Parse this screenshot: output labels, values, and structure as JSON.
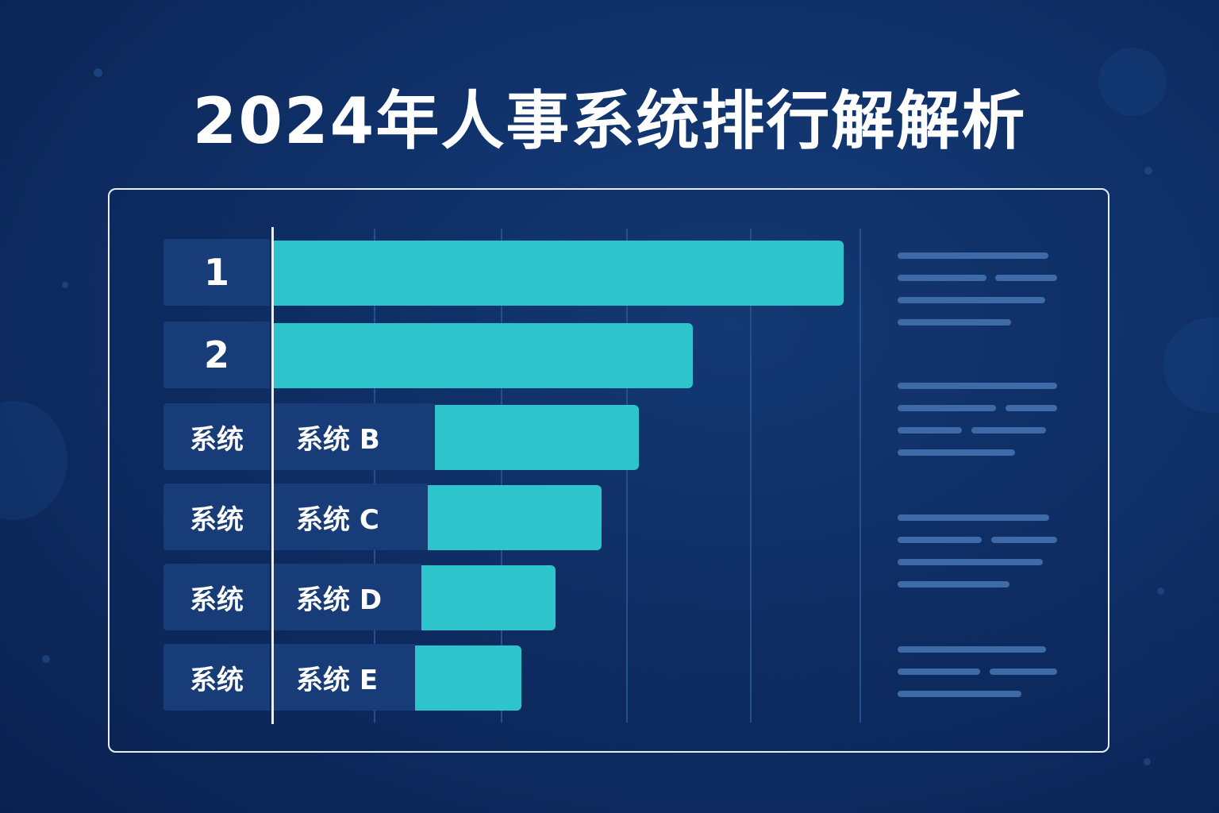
{
  "title": "2024年人事系统排行解解析",
  "colors": {
    "background": "#0f3068",
    "bar": "#2ec4cb",
    "label_bg": "#173c78",
    "text_line": "#3e6aa8"
  },
  "chart_data": {
    "type": "bar",
    "orientation": "horizontal",
    "title": "2024年人事系统排行解解析",
    "rank_labels": [
      "1",
      "2",
      "系统",
      "系统",
      "系统",
      "系统"
    ],
    "categories": [
      "",
      "",
      "系统 B",
      "系统 C",
      "系统 D",
      "系统 E"
    ],
    "values": [
      100,
      73.5,
      64,
      57.5,
      49.5,
      43.5
    ],
    "grid": true,
    "legend": "none"
  }
}
